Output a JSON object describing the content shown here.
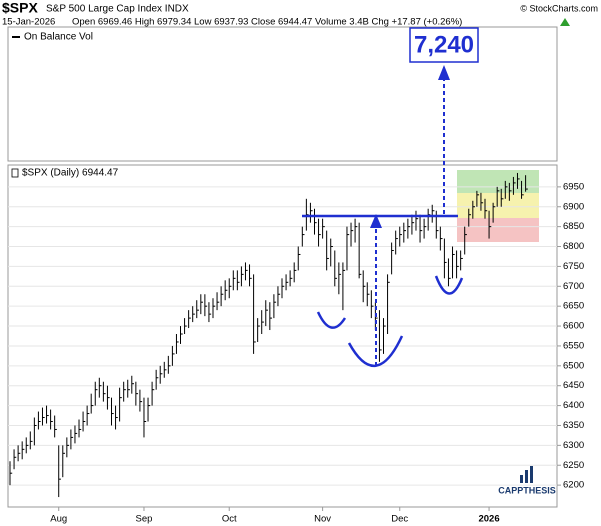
{
  "chart_data": {
    "type": "ohlc",
    "title": "$SPX",
    "subtitle": "S&P 500 Large Cap Index INDX",
    "source": "© StockCharts.com",
    "date": "15-Jan-2026",
    "quote": "Open 6969.46 High 6979.34 Low 6937.93 Close 6944.47 Volume 3.4B Chg +17.87 (+0.26%)",
    "upper_panel_label": "On Balance Vol",
    "legend": "$SPX (Daily) 6944.47",
    "annotation": {
      "value": 7240,
      "label": "7,240"
    },
    "logo": "CAPPTHESIS",
    "color": "#000000",
    "categories": [
      null,
      null,
      null,
      null,
      null,
      null,
      null,
      null,
      null,
      null,
      null,
      null,
      "Aug",
      null,
      null,
      null,
      null,
      null,
      null,
      null,
      null,
      null,
      null,
      null,
      null,
      null,
      null,
      null,
      null,
      null,
      null,
      null,
      null,
      "Sep",
      null,
      null,
      null,
      null,
      null,
      null,
      null,
      null,
      null,
      null,
      null,
      null,
      null,
      null,
      null,
      null,
      null,
      null,
      null,
      null,
      "Oct",
      null,
      null,
      null,
      null,
      null,
      null,
      null,
      null,
      null,
      null,
      null,
      null,
      null,
      null,
      null,
      null,
      null,
      null,
      null,
      null,
      null,
      null,
      "Nov",
      null,
      null,
      null,
      null,
      null,
      null,
      null,
      null,
      null,
      null,
      null,
      null,
      null,
      null,
      null,
      null,
      null,
      null,
      "Dec",
      null,
      null,
      null,
      null,
      null,
      null,
      null,
      null,
      null,
      null,
      null,
      null,
      null,
      null,
      null,
      null,
      null,
      null,
      null,
      null,
      null,
      "2026",
      null,
      null,
      null,
      null,
      null,
      null,
      null,
      null,
      null
    ],
    "high": [
      6260,
      6290,
      6300,
      6310,
      6320,
      6335,
      6370,
      6385,
      6395,
      6400,
      6390,
      6375,
      6300,
      6300,
      6320,
      6340,
      6350,
      6365,
      6385,
      6400,
      6430,
      6460,
      6470,
      6460,
      6450,
      6420,
      6400,
      6445,
      6460,
      6465,
      6475,
      6460,
      6440,
      6420,
      6420,
      6460,
      6490,
      6500,
      6510,
      6525,
      6550,
      6580,
      6600,
      6620,
      6640,
      6650,
      6665,
      6680,
      6680,
      6660,
      6670,
      6685,
      6700,
      6715,
      6720,
      6740,
      6740,
      6750,
      6760,
      6755,
      6730,
      6620,
      6640,
      6665,
      6660,
      6680,
      6700,
      6720,
      6730,
      6740,
      6760,
      6800,
      6850,
      6920,
      6910,
      6895,
      6870,
      6870,
      6840,
      6820,
      6790,
      6760,
      6760,
      6850,
      6860,
      6870,
      6860,
      6740,
      6710,
      6690,
      6660,
      6640,
      6620,
      6730,
      6810,
      6840,
      6850,
      6860,
      6870,
      6880,
      6890,
      6880,
      6870,
      6895,
      6905,
      6890,
      6850,
      6820,
      6770,
      6800,
      6790,
      6790,
      6850,
      6895,
      6915,
      6940,
      6935,
      6920,
      6890,
      6910,
      6950,
      6945,
      6965,
      6960,
      6975,
      6985,
      6965,
      6979.34
    ],
    "low": [
      6200,
      6240,
      6260,
      6265,
      6280,
      6290,
      6300,
      6340,
      6350,
      6355,
      6340,
      6320,
      6170,
      6220,
      6270,
      6290,
      6305,
      6320,
      6335,
      6350,
      6380,
      6400,
      6420,
      6410,
      6390,
      6350,
      6340,
      6360,
      6410,
      6420,
      6430,
      6400,
      6385,
      6320,
      6360,
      6400,
      6440,
      6455,
      6470,
      6480,
      6500,
      6530,
      6555,
      6580,
      6595,
      6610,
      6620,
      6630,
      6625,
      6610,
      6620,
      6640,
      6650,
      6665,
      6670,
      6690,
      6690,
      6700,
      6715,
      6700,
      6530,
      6560,
      6580,
      6600,
      6590,
      6620,
      6650,
      6670,
      6690,
      6700,
      6710,
      6740,
      6800,
      6840,
      6860,
      6830,
      6800,
      6820,
      6740,
      6750,
      6700,
      6680,
      6640,
      6740,
      6800,
      6810,
      6720,
      6660,
      6650,
      6620,
      6590,
      6510,
      6530,
      6580,
      6730,
      6780,
      6800,
      6810,
      6820,
      6830,
      6840,
      6810,
      6820,
      6840,
      6860,
      6820,
      6790,
      6720,
      6700,
      6720,
      6720,
      6740,
      6780,
      6850,
      6870,
      6900,
      6890,
      6870,
      6820,
      6860,
      6900,
      6900,
      6920,
      6915,
      6930,
      6945,
      6920,
      6937.93
    ],
    "close": [
      6230,
      6270,
      6280,
      6290,
      6300,
      6310,
      6350,
      6360,
      6370,
      6375,
      6360,
      6340,
      6215,
      6280,
      6300,
      6320,
      6330,
      6340,
      6360,
      6380,
      6400,
      6440,
      6450,
      6430,
      6420,
      6380,
      6370,
      6420,
      6440,
      6440,
      6455,
      6430,
      6410,
      6360,
      6400,
      6440,
      6470,
      6480,
      6490,
      6500,
      6530,
      6560,
      6580,
      6600,
      6620,
      6630,
      6640,
      6660,
      6650,
      6630,
      6650,
      6660,
      6680,
      6690,
      6700,
      6720,
      6710,
      6730,
      6740,
      6720,
      6560,
      6600,
      6610,
      6640,
      6620,
      6660,
      6680,
      6700,
      6710,
      6720,
      6740,
      6780,
      6830,
      6880,
      6890,
      6860,
      6830,
      6850,
      6770,
      6800,
      6720,
      6730,
      6740,
      6830,
      6840,
      6850,
      6730,
      6700,
      6680,
      6650,
      6620,
      6540,
      6600,
      6710,
      6790,
      6820,
      6830,
      6840,
      6850,
      6860,
      6870,
      6840,
      6850,
      6880,
      6890,
      6840,
      6820,
      6760,
      6720,
      6780,
      6750,
      6770,
      6830,
      6880,
      6900,
      6930,
      6910,
      6890,
      6850,
      6900,
      6940,
      6920,
      6950,
      6940,
      6960,
      6970,
      6930,
      6944.47
    ],
    "ylim": [
      6145,
      7005
    ],
    "yticks": [
      6200,
      6250,
      6300,
      6350,
      6400,
      6450,
      6500,
      6550,
      6600,
      6650,
      6700,
      6750,
      6800,
      6850,
      6900,
      6950
    ],
    "grid": true
  }
}
